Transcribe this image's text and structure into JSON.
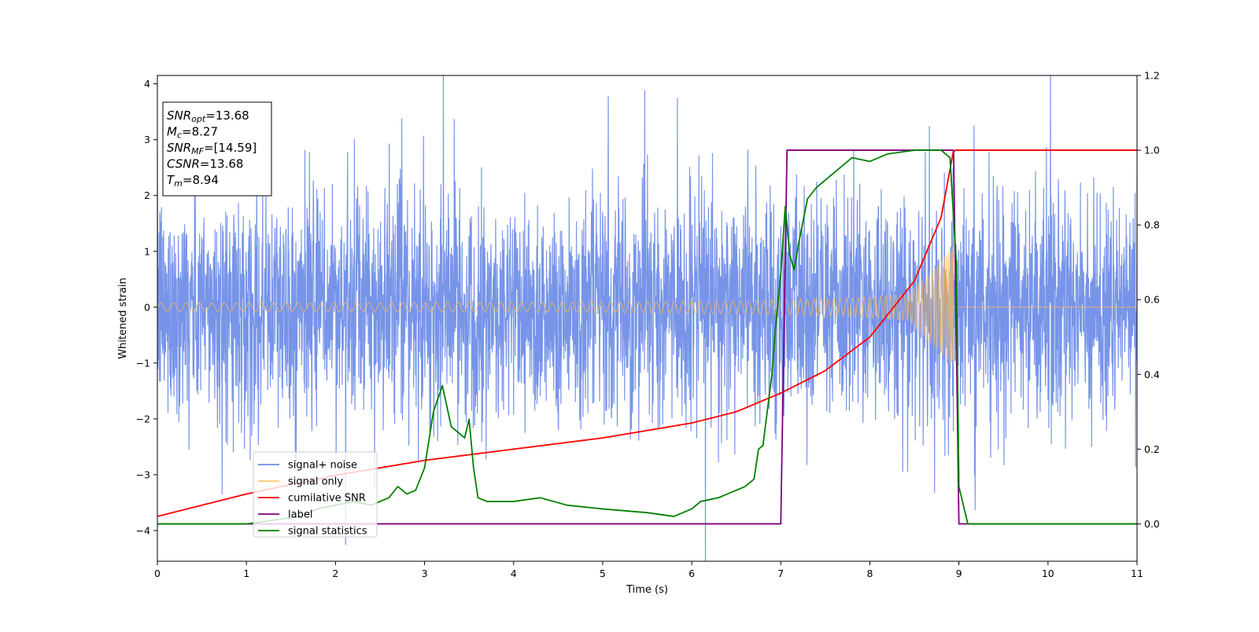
{
  "chart_data": {
    "type": "line",
    "xlabel": "Time (s)",
    "ylabel": "Whitened strain",
    "xlim": [
      0,
      11
    ],
    "ylim": [
      -4.55,
      4.15
    ],
    "y2lim": [
      -0.1,
      1.2
    ],
    "x_ticks": [
      "0",
      "1",
      "2",
      "3",
      "4",
      "5",
      "6",
      "7",
      "8",
      "9",
      "10",
      "11"
    ],
    "y_ticks": [
      "−4",
      "−3",
      "−2",
      "−1",
      "0",
      "1",
      "2",
      "3",
      "4"
    ],
    "y2_ticks": [
      "0.0",
      "0.2",
      "0.4",
      "0.6",
      "0.8",
      "1.0",
      "1.2"
    ],
    "y_tick_values": [
      -4,
      -3,
      -2,
      -1,
      0,
      1,
      2,
      3,
      4
    ],
    "y2_tick_values": [
      0.0,
      0.2,
      0.4,
      0.6,
      0.8,
      1.0,
      1.2
    ],
    "info_box": [
      {
        "name": "SNR",
        "sub": "opt",
        "value": "=13.68"
      },
      {
        "name": "M",
        "sub": "c",
        "value": "=8.27"
      },
      {
        "name": "SNR",
        "sub": "MF",
        "value": "=[14.59]"
      },
      {
        "name": "CSNR",
        "sub": "",
        "value": "=13.68"
      },
      {
        "name": "T",
        "sub": "m",
        "value": "=8.94"
      }
    ],
    "legend": {
      "placement": "lower-left",
      "entries": [
        {
          "label": "signal+ noise",
          "color": "#6b8be6"
        },
        {
          "label": "signal only",
          "color": "#ffc870"
        },
        {
          "label": "cumilative SNR",
          "color": "#ff0000"
        },
        {
          "label": "label",
          "color": "#800080"
        },
        {
          "label": "signal statistics",
          "color": "#008000"
        }
      ]
    },
    "series": [
      {
        "name": "signal+ noise",
        "axis": "left",
        "color": "#6b8be6",
        "description_amplitude_sigma": 1.0,
        "x_range": [
          0,
          11
        ]
      },
      {
        "name": "signal only",
        "axis": "left",
        "color": "#ffc870",
        "chirp_end_time": 8.94,
        "amplitude_end": 1.2
      },
      {
        "name": "cumilative SNR",
        "axis": "right",
        "color": "#ff0000",
        "x": [
          0,
          1,
          2,
          3,
          4,
          5,
          6,
          6.5,
          7,
          7.5,
          8,
          8.5,
          8.8,
          8.94,
          11
        ],
        "y": [
          0.02,
          0.08,
          0.13,
          0.17,
          0.2,
          0.23,
          0.27,
          0.3,
          0.35,
          0.41,
          0.5,
          0.65,
          0.82,
          1.0,
          1.0
        ]
      },
      {
        "name": "label",
        "axis": "right",
        "color": "#800080",
        "x": [
          0,
          7.0,
          7.07,
          8.94,
          9.0,
          11
        ],
        "y": [
          0,
          0,
          1,
          1,
          0,
          0
        ]
      },
      {
        "name": "signal statistics",
        "axis": "right",
        "color": "#008000",
        "x": [
          0,
          0.3,
          1.0,
          1.6,
          1.8,
          2.0,
          2.2,
          2.4,
          2.6,
          2.7,
          2.8,
          2.9,
          3.0,
          3.1,
          3.2,
          3.3,
          3.4,
          3.45,
          3.5,
          3.55,
          3.6,
          3.7,
          3.8,
          4.0,
          4.3,
          4.6,
          5.0,
          5.5,
          5.8,
          6.0,
          6.1,
          6.3,
          6.5,
          6.6,
          6.7,
          6.75,
          6.8,
          6.9,
          6.95,
          7.0,
          7.05,
          7.1,
          7.15,
          7.2,
          7.3,
          7.4,
          7.6,
          7.8,
          8.0,
          8.2,
          8.5,
          8.8,
          8.9,
          8.97,
          9.0,
          9.1,
          11
        ],
        "y": [
          0,
          0.0,
          0.0,
          0.02,
          0.04,
          0.05,
          0.06,
          0.05,
          0.07,
          0.1,
          0.08,
          0.09,
          0.15,
          0.3,
          0.37,
          0.26,
          0.24,
          0.23,
          0.28,
          0.15,
          0.07,
          0.06,
          0.06,
          0.06,
          0.07,
          0.05,
          0.04,
          0.03,
          0.02,
          0.04,
          0.06,
          0.07,
          0.09,
          0.1,
          0.12,
          0.2,
          0.21,
          0.4,
          0.55,
          0.67,
          0.85,
          0.72,
          0.68,
          0.75,
          0.87,
          0.9,
          0.94,
          0.98,
          0.97,
          0.99,
          1.0,
          1.0,
          0.98,
          0.7,
          0.1,
          0.0,
          0.0
        ]
      }
    ]
  }
}
